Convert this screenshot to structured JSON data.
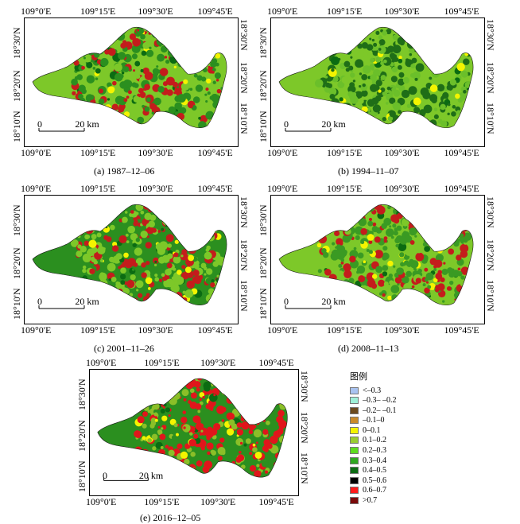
{
  "panels": [
    {
      "lon_ticks": [
        "109°0'E",
        "109°15'E",
        "109°30'E",
        "109°45'E"
      ],
      "lat_ticks": [
        "18°30'N",
        "18°20'N",
        "18°10'N"
      ],
      "scale": {
        "zero": "0",
        "dist": "20 km"
      },
      "caption": "(a) 1987–12–06",
      "dominant": [
        "#2b8f1f",
        "#c41c1c",
        "#7dc829"
      ]
    },
    {
      "lon_ticks": [
        "109°0'E",
        "109°15'E",
        "109°30'E",
        "109°45'E"
      ],
      "lat_ticks": [
        "18°30'N",
        "18°20'N",
        "18°10'N"
      ],
      "scale": {
        "zero": "0",
        "dist": "20 km"
      },
      "caption": "(b) 1994–11–07",
      "dominant": [
        "#1f6e17",
        "#6bbf2a",
        "#7dc829"
      ]
    },
    {
      "lon_ticks": [
        "109°0'E",
        "109°15'E",
        "109°30'E",
        "109°45'E"
      ],
      "lat_ticks": [
        "18°30'N",
        "18°20'N",
        "18°10'N"
      ],
      "scale": {
        "zero": "0",
        "dist": "20 km"
      },
      "caption": "(c) 2001–11–26",
      "dominant": [
        "#7dc829",
        "#c41c1c",
        "#2b8f1f"
      ]
    },
    {
      "lon_ticks": [
        "109°0'E",
        "109°15'E",
        "109°30'E",
        "109°45'E"
      ],
      "lat_ticks": [
        "18°30'N",
        "18°20'N",
        "18°10'N"
      ],
      "scale": {
        "zero": "0",
        "dist": "20 km"
      },
      "caption": "(d) 2008–11–13",
      "dominant": [
        "#3a9a23",
        "#c41c1c",
        "#7dc829"
      ]
    },
    {
      "lon_ticks": [
        "109°0'E",
        "109°15'E",
        "109°30'E",
        "109°45'E"
      ],
      "lat_ticks": [
        "18°30'N",
        "18°20'N",
        "18°10'N"
      ],
      "scale": {
        "zero": "0",
        "dist": "20 km"
      },
      "caption": "(e) 2016–12–05",
      "dominant": [
        "#e0161b",
        "#8bbf28",
        "#2b8f1f"
      ]
    }
  ],
  "legend": {
    "title": "图例",
    "items": [
      {
        "label": "<–0.3",
        "color": "#a9c3f0"
      },
      {
        "label": "–0.3– –0.2",
        "color": "#9ff0d8"
      },
      {
        "label": "–0.2– –0.1",
        "color": "#6b4a1e"
      },
      {
        "label": "–0.1–0",
        "color": "#c98a2a"
      },
      {
        "label": "0–0.1",
        "color": "#f4f400"
      },
      {
        "label": "0.1–0.2",
        "color": "#9acd32"
      },
      {
        "label": "0.2–0.3",
        "color": "#5edc1f"
      },
      {
        "label": "0.3–0.4",
        "color": "#2ea81f"
      },
      {
        "label": "0.4–0.5",
        "color": "#0b6b12"
      },
      {
        "label": "0.5–0.6",
        "color": "#000000"
      },
      {
        "label": "0.6–0.7",
        "color": "#ff1a1a"
      },
      {
        "label": ">0.7",
        "color": "#7a0a0a"
      }
    ]
  }
}
